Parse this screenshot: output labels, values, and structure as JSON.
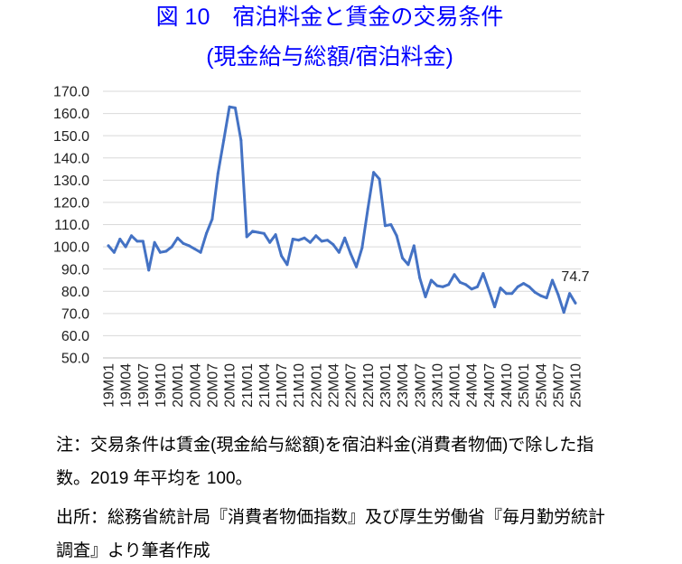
{
  "chart_data": {
    "type": "line",
    "title": "図 10　宿泊料金と賃金の交易条件",
    "subtitle": "(現金給与総額/宿泊料金)",
    "title_color": "#0000FF",
    "ylim": [
      50,
      170
    ],
    "y_tick_labels": [
      "50.0",
      "60.0",
      "70.0",
      "80.0",
      "90.0",
      "100.0",
      "110.0",
      "120.0",
      "130.0",
      "140.0",
      "150.0",
      "160.0",
      "170.0"
    ],
    "x_tick_labels": [
      "19M01",
      "19M04",
      "19M07",
      "19M10",
      "20M01",
      "20M04",
      "20M07",
      "20M10",
      "21M01",
      "21M04",
      "21M07",
      "21M10",
      "22M01",
      "22M04",
      "22M07",
      "22M10",
      "23M01",
      "23M04",
      "23M07",
      "23M10",
      "24M01",
      "24M04",
      "24M07",
      "24M10",
      "25M01",
      "25M04",
      "25M07",
      "25M10"
    ],
    "values": [
      100.5,
      97.5,
      103.5,
      100.0,
      105.0,
      102.5,
      102.5,
      89.5,
      102.0,
      97.5,
      98.0,
      100.0,
      104.0,
      101.5,
      100.5,
      99.0,
      97.5,
      106.0,
      112.5,
      133.0,
      148.0,
      163.0,
      162.5,
      148.0,
      104.5,
      107.0,
      106.5,
      106.0,
      102.0,
      105.5,
      96.0,
      92.0,
      103.5,
      103.0,
      104.0,
      102.0,
      105.0,
      102.5,
      103.0,
      101.0,
      97.5,
      104.0,
      97.0,
      91.0,
      99.5,
      117.0,
      133.5,
      130.5,
      109.5,
      110.0,
      105.0,
      95.0,
      92.0,
      100.5,
      86.0,
      77.5,
      85.0,
      82.5,
      82.0,
      83.0,
      87.5,
      84.0,
      83.0,
      81.0,
      82.0,
      88.0,
      80.5,
      73.0,
      81.5,
      79.0,
      79.0,
      82.0,
      83.5,
      82.0,
      79.5,
      78.0,
      77.0,
      85.0,
      78.5,
      70.5,
      79.0,
      74.7
    ],
    "line_color": "#4472C4",
    "data_labels": [
      {
        "index": 81,
        "text": "74.7"
      }
    ],
    "grid_y": true,
    "legend": false
  },
  "notes": {
    "note_lines": [
      "注：交易条件は賃金(現金給与総額)を宿泊料金(消費者物価)で除した指",
      "数。2019 年平均を 100。"
    ],
    "source_lines": [
      "出所：総務省統計局『消費者物価指数』及び厚生労働省『毎月勤労統計",
      "調査』より筆者作成"
    ]
  }
}
